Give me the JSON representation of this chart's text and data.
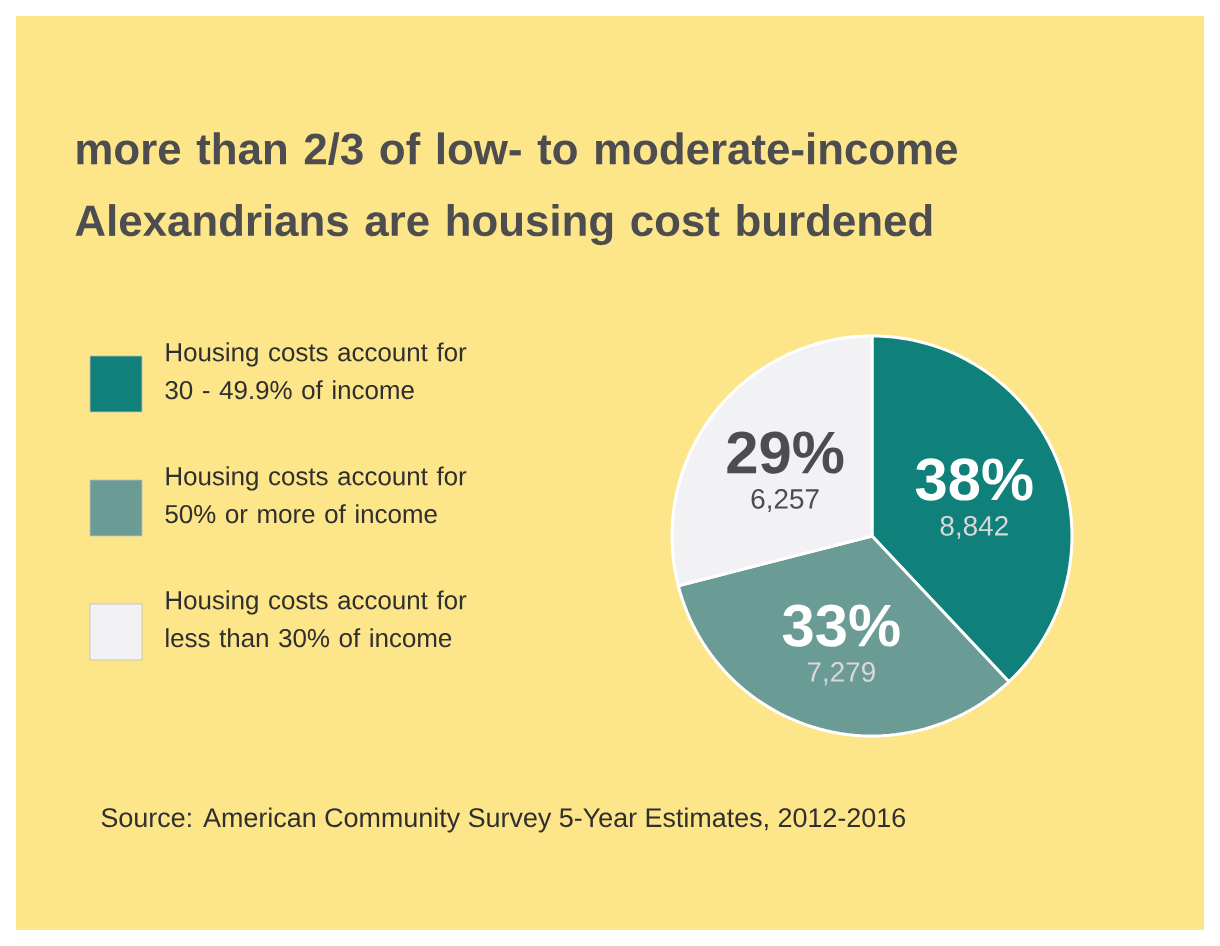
{
  "chart_data": {
    "type": "pie",
    "title": "more than 2/3 of low- to moderate-income Alexandrians are housing cost burdened",
    "categories": [
      "Housing costs account for 30 - 49.9% of income",
      "Housing costs account for 50% or more of income",
      "Housing costs account for less than 30% of income"
    ],
    "values": [
      38,
      33,
      29
    ],
    "value_labels": [
      "38%",
      "33%",
      "29%"
    ],
    "colors": [
      "#10807a",
      "#6b9b95",
      "#f2f2f4"
    ],
    "legend": "left",
    "annotations": [
      {
        "text": "8,842",
        "x": "Housing costs account for 30 - 49.9% of income"
      },
      {
        "text": "7,279",
        "x": "Housing costs account for 50% or more of income"
      },
      {
        "text": "6,257",
        "x": "Housing costs account for less than 30% of income"
      },
      "Source: American Community Survey 5-Year Estimates, 2012-2016"
    ]
  }
}
